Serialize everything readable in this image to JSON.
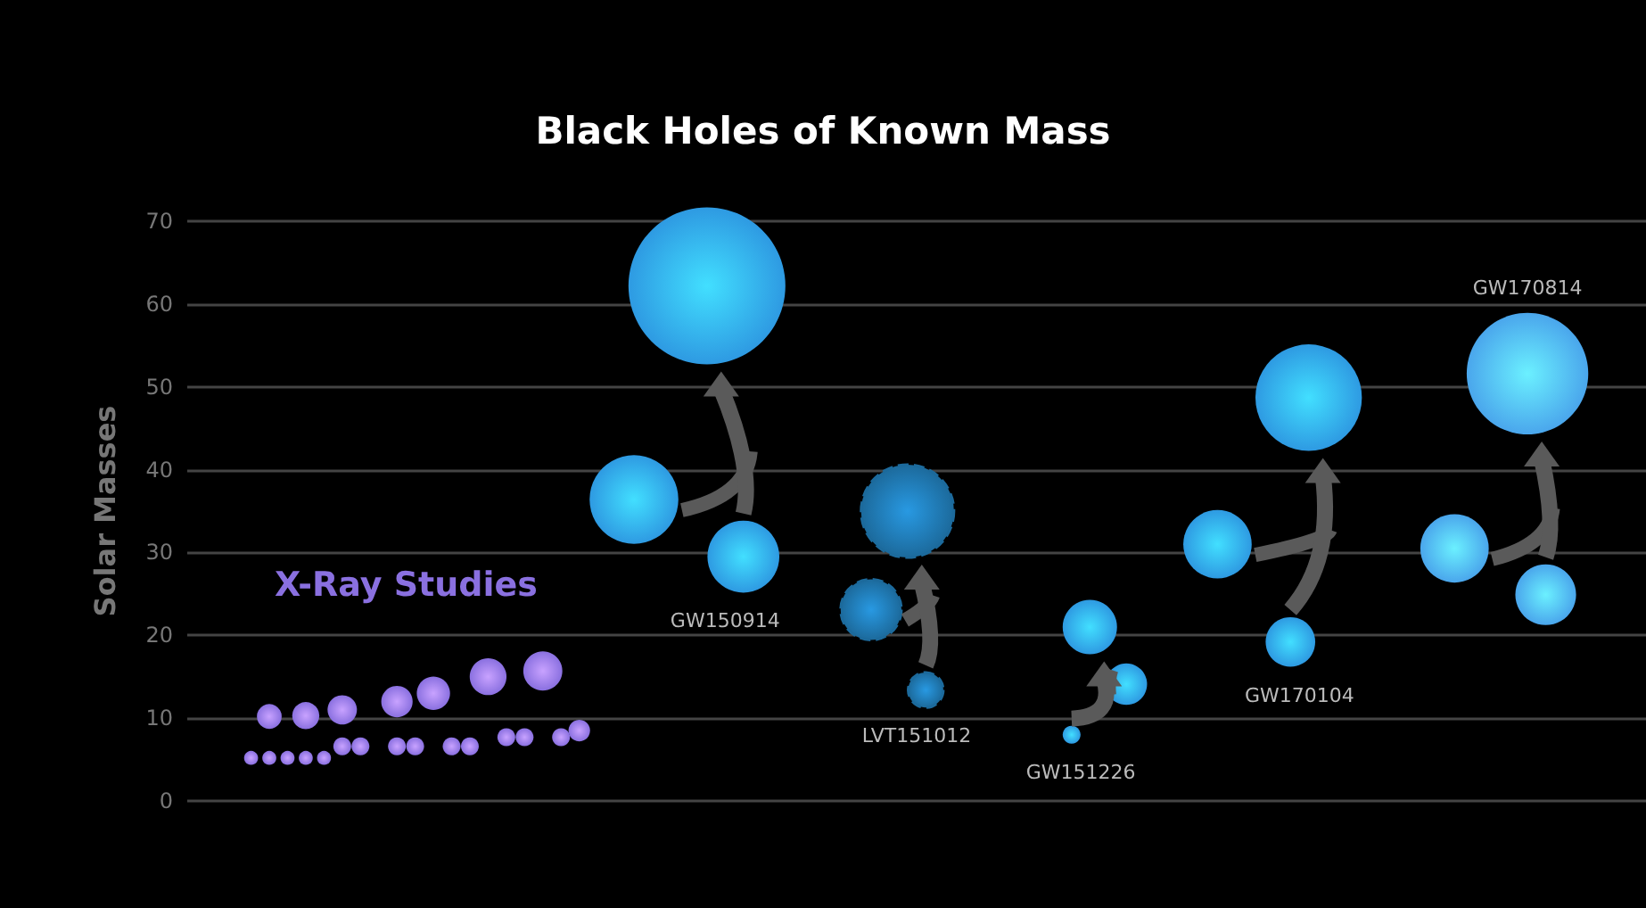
{
  "chart_data": {
    "type": "bubble",
    "title": "Black Holes of Known Mass",
    "ylabel": "Solar Masses",
    "categories": [
      null,
      null,
      null,
      null,
      null,
      null,
      null,
      null,
      null,
      null,
      null,
      null,
      null,
      null,
      null,
      null,
      null,
      null,
      null,
      null,
      null,
      null,
      null,
      null,
      null,
      null,
      null,
      null,
      null,
      null,
      null,
      null,
      null,
      null,
      null,
      null,
      null,
      null,
      null,
      null,
      null,
      null,
      null,
      null,
      null,
      null,
      null,
      null,
      null,
      null,
      null,
      null,
      null,
      null,
      null,
      null,
      null,
      null,
      null,
      null,
      null,
      null,
      null,
      null,
      null,
      null,
      null,
      null,
      null,
      null,
      null,
      null,
      null,
      null,
      null,
      null,
      null,
      null,
      null,
      null
    ],
    "ylim": [
      0,
      70
    ],
    "yticks": [
      0,
      10,
      20,
      30,
      40,
      50,
      60,
      70
    ],
    "grid": "y",
    "tick_labels": "y",
    "legend": false,
    "series": [
      {
        "name": "X-Ray Studies",
        "color": "#8a70e0",
        "values": [
          null,
          null,
          null,
          null,
          10.2,
          null,
          10.3,
          null,
          11.0,
          null,
          null,
          12.0,
          null,
          13.0,
          null,
          null,
          15.0,
          null,
          null,
          15.7,
          null,
          null,
          null,
          null,
          null,
          null,
          null,
          null,
          null,
          null,
          null,
          null,
          null,
          null,
          null,
          null,
          null,
          null,
          null,
          null,
          null,
          null,
          null,
          null,
          null,
          null,
          null,
          null,
          null,
          null,
          null,
          null,
          null,
          null,
          null,
          null,
          null,
          null,
          null,
          null,
          null,
          null,
          null,
          null,
          null,
          null,
          null,
          null,
          null,
          null,
          null,
          null,
          null,
          null,
          null,
          null,
          null,
          null,
          null,
          null
        ],
        "sizes": [
          null,
          null,
          null,
          null,
          0.025,
          null,
          0.03,
          null,
          0.035,
          null,
          null,
          0.04,
          null,
          0.045,
          null,
          null,
          0.055,
          null,
          null,
          0.062,
          null,
          null,
          null,
          null,
          null,
          null,
          null,
          null,
          null,
          null,
          null,
          null,
          null,
          null,
          null,
          null,
          null,
          null,
          null,
          null,
          null,
          null,
          null,
          null,
          null,
          null,
          null,
          null,
          null,
          null,
          null,
          null,
          null,
          null,
          null,
          null,
          null,
          null,
          null,
          null,
          null,
          null,
          null,
          null,
          null,
          null,
          null,
          null,
          null,
          null,
          null,
          null,
          null,
          null,
          null,
          null,
          null,
          null,
          null,
          null
        ]
      },
      {
        "color": "#8a70e0",
        "values": [
          null,
          null,
          null,
          5.2,
          5.2,
          5.2,
          5.2,
          5.2,
          6.6,
          6.6,
          null,
          6.6,
          6.6,
          null,
          6.6,
          6.6,
          null,
          7.7,
          7.7,
          null,
          7.7,
          8.5,
          null,
          null,
          null,
          null,
          null,
          null,
          null,
          null,
          null,
          null,
          null,
          null,
          null,
          null,
          null,
          null,
          null,
          null,
          null,
          null,
          null,
          null,
          null,
          null,
          null,
          null,
          null,
          null,
          null,
          null,
          null,
          null,
          null,
          null,
          null,
          null,
          null,
          null,
          null,
          null,
          null,
          null,
          null,
          null,
          null,
          null,
          null,
          null,
          null,
          null,
          null,
          null,
          null,
          null,
          null,
          null,
          null,
          null
        ],
        "sizes": [
          null,
          null,
          null,
          0.008,
          0.008,
          0.008,
          0.008,
          0.008,
          0.013,
          0.013,
          null,
          0.013,
          0.013,
          null,
          0.013,
          0.013,
          null,
          0.013,
          0.013,
          null,
          0.013,
          0.019,
          null,
          null,
          null,
          null,
          null,
          null,
          null,
          null,
          null,
          null,
          null,
          null,
          null,
          null,
          null,
          null,
          null,
          null,
          null,
          null,
          null,
          null,
          null,
          null,
          null,
          null,
          null,
          null,
          null,
          null,
          null,
          null,
          null,
          null,
          null,
          null,
          null,
          null,
          null,
          null,
          null,
          null,
          null,
          null,
          null,
          null,
          null,
          null,
          null,
          null,
          null,
          null,
          null,
          null,
          null,
          null,
          null,
          null
        ]
      },
      {
        "color": "#2e9ae2",
        "values": [
          null,
          null,
          null,
          null,
          null,
          null,
          null,
          null,
          null,
          null,
          null,
          null,
          null,
          null,
          null,
          null,
          null,
          null,
          null,
          null,
          null,
          null,
          null,
          null,
          36.4,
          null,
          null,
          null,
          62.2,
          null,
          29.5,
          null,
          null,
          null,
          null,
          null,
          null,
          null,
          null,
          null,
          null,
          null,
          null,
          null,
          null,
          null,
          null,
          null,
          null,
          null,
          null,
          null,
          null,
          null,
          null,
          null,
          null,
          null,
          null,
          null,
          null,
          null,
          null,
          null,
          null,
          null,
          null,
          null,
          null,
          null,
          null,
          null,
          null,
          null,
          null,
          null,
          null,
          null,
          null,
          null
        ],
        "sizes": [
          null,
          null,
          null,
          null,
          null,
          null,
          null,
          null,
          null,
          null,
          null,
          null,
          null,
          null,
          null,
          null,
          null,
          null,
          null,
          null,
          null,
          null,
          null,
          null,
          0.32,
          null,
          null,
          null,
          1,
          null,
          0.21,
          null,
          null,
          null,
          null,
          null,
          null,
          null,
          null,
          null,
          null,
          null,
          null,
          null,
          null,
          null,
          null,
          null,
          null,
          null,
          null,
          null,
          null,
          null,
          null,
          null,
          null,
          null,
          null,
          null,
          null,
          null,
          null,
          null,
          null,
          null,
          null,
          null,
          null,
          null,
          null,
          null,
          null,
          null,
          null,
          null,
          null,
          null,
          null,
          null
        ]
      },
      {
        "color": "#1c6a9c",
        "line_style": "dashed",
        "values": [
          null,
          null,
          null,
          null,
          null,
          null,
          null,
          null,
          null,
          null,
          null,
          null,
          null,
          null,
          null,
          null,
          null,
          null,
          null,
          null,
          null,
          null,
          null,
          null,
          null,
          null,
          null,
          null,
          null,
          null,
          null,
          null,
          null,
          null,
          null,
          null,
          null,
          23.1,
          null,
          35.0,
          13.4,
          null,
          null,
          null,
          null,
          null,
          null,
          null,
          null,
          null,
          null,
          null,
          null,
          null,
          null,
          null,
          null,
          null,
          null,
          null,
          null,
          null,
          null,
          null,
          null,
          null,
          null,
          null,
          null,
          null,
          null,
          null,
          null,
          null,
          null,
          null,
          null,
          null,
          null,
          null
        ],
        "sizes": [
          null,
          null,
          null,
          null,
          null,
          null,
          null,
          null,
          null,
          null,
          null,
          null,
          null,
          null,
          null,
          null,
          null,
          null,
          null,
          null,
          null,
          null,
          null,
          null,
          null,
          null,
          null,
          null,
          null,
          null,
          null,
          null,
          null,
          null,
          null,
          null,
          null,
          0.15,
          null,
          0.35,
          0.05,
          null,
          null,
          null,
          null,
          null,
          null,
          null,
          null,
          null,
          null,
          null,
          null,
          null,
          null,
          null,
          null,
          null,
          null,
          null,
          null,
          null,
          null,
          null,
          null,
          null,
          null,
          null,
          null,
          null,
          null,
          null,
          null,
          null,
          null,
          null,
          null,
          null,
          null,
          null
        ]
      },
      {
        "color": "#2e9ae2",
        "values": [
          null,
          null,
          null,
          null,
          null,
          null,
          null,
          null,
          null,
          null,
          null,
          null,
          null,
          null,
          null,
          null,
          null,
          null,
          null,
          null,
          null,
          null,
          null,
          null,
          null,
          null,
          null,
          null,
          null,
          null,
          null,
          null,
          null,
          null,
          null,
          null,
          null,
          null,
          null,
          null,
          null,
          null,
          null,
          null,
          null,
          null,
          null,
          null,
          8.0,
          21.0,
          null,
          14.1,
          null,
          null,
          null,
          null,
          null,
          null,
          null,
          null,
          null,
          null,
          null,
          null,
          null,
          null,
          null,
          null,
          null,
          null,
          null,
          null,
          null,
          null,
          null,
          null,
          null,
          null,
          null,
          null
        ],
        "sizes": [
          null,
          null,
          null,
          null,
          null,
          null,
          null,
          null,
          null,
          null,
          null,
          null,
          null,
          null,
          null,
          null,
          null,
          null,
          null,
          null,
          null,
          null,
          null,
          null,
          null,
          null,
          null,
          null,
          null,
          null,
          null,
          null,
          null,
          null,
          null,
          null,
          null,
          null,
          null,
          null,
          null,
          null,
          null,
          null,
          null,
          null,
          null,
          null,
          0.013,
          0.12,
          null,
          0.07,
          null,
          null,
          null,
          null,
          null,
          null,
          null,
          null,
          null,
          null,
          null,
          null,
          null,
          null,
          null,
          null,
          null,
          null,
          null,
          null,
          null,
          null,
          null,
          null,
          null,
          null,
          null,
          null
        ]
      },
      {
        "color": "#2e9ae2",
        "values": [
          null,
          null,
          null,
          null,
          null,
          null,
          null,
          null,
          null,
          null,
          null,
          null,
          null,
          null,
          null,
          null,
          null,
          null,
          null,
          null,
          null,
          null,
          null,
          null,
          null,
          null,
          null,
          null,
          null,
          null,
          null,
          null,
          null,
          null,
          null,
          null,
          null,
          null,
          null,
          null,
          null,
          null,
          null,
          null,
          null,
          null,
          null,
          null,
          null,
          null,
          null,
          null,
          null,
          null,
          null,
          null,
          31.0,
          null,
          null,
          null,
          19.2,
          48.7,
          null,
          null,
          null,
          null,
          null,
          null,
          null,
          null,
          null,
          null,
          null,
          null,
          null,
          null,
          null,
          null,
          null,
          null
        ],
        "sizes": [
          null,
          null,
          null,
          null,
          null,
          null,
          null,
          null,
          null,
          null,
          null,
          null,
          null,
          null,
          null,
          null,
          null,
          null,
          null,
          null,
          null,
          null,
          null,
          null,
          null,
          null,
          null,
          null,
          null,
          null,
          null,
          null,
          null,
          null,
          null,
          null,
          null,
          null,
          null,
          null,
          null,
          null,
          null,
          null,
          null,
          null,
          null,
          null,
          null,
          null,
          null,
          null,
          null,
          null,
          null,
          null,
          0.19,
          null,
          null,
          null,
          0.1,
          0.46,
          null,
          null,
          null,
          null,
          null,
          null,
          null,
          null,
          null,
          null,
          null,
          null,
          null,
          null,
          null,
          null,
          null,
          null
        ]
      },
      {
        "color": "#4aa6ec",
        "values": [
          null,
          null,
          null,
          null,
          null,
          null,
          null,
          null,
          null,
          null,
          null,
          null,
          null,
          null,
          null,
          null,
          null,
          null,
          null,
          null,
          null,
          null,
          null,
          null,
          null,
          null,
          null,
          null,
          null,
          null,
          null,
          null,
          null,
          null,
          null,
          null,
          null,
          null,
          null,
          null,
          null,
          null,
          null,
          null,
          null,
          null,
          null,
          null,
          null,
          null,
          null,
          null,
          null,
          null,
          null,
          null,
          null,
          null,
          null,
          null,
          null,
          null,
          null,
          null,
          null,
          null,
          null,
          null,
          null,
          30.5,
          null,
          null,
          null,
          51.6,
          24.9,
          null,
          null,
          null,
          null,
          null
        ],
        "sizes": [
          null,
          null,
          null,
          null,
          null,
          null,
          null,
          null,
          null,
          null,
          null,
          null,
          null,
          null,
          null,
          null,
          null,
          null,
          null,
          null,
          null,
          null,
          null,
          null,
          null,
          null,
          null,
          null,
          null,
          null,
          null,
          null,
          null,
          null,
          null,
          null,
          null,
          null,
          null,
          null,
          null,
          null,
          null,
          null,
          null,
          null,
          null,
          null,
          null,
          null,
          null,
          null,
          null,
          null,
          null,
          null,
          null,
          null,
          null,
          null,
          null,
          null,
          null,
          null,
          null,
          null,
          null,
          null,
          null,
          0.19,
          null,
          null,
          null,
          0.6,
          0.15,
          null,
          null,
          null,
          null,
          null
        ]
      }
    ],
    "annotations": [
      "GW150914",
      "LVT151012",
      "GW151226",
      "GW170104",
      "GW170814"
    ]
  }
}
